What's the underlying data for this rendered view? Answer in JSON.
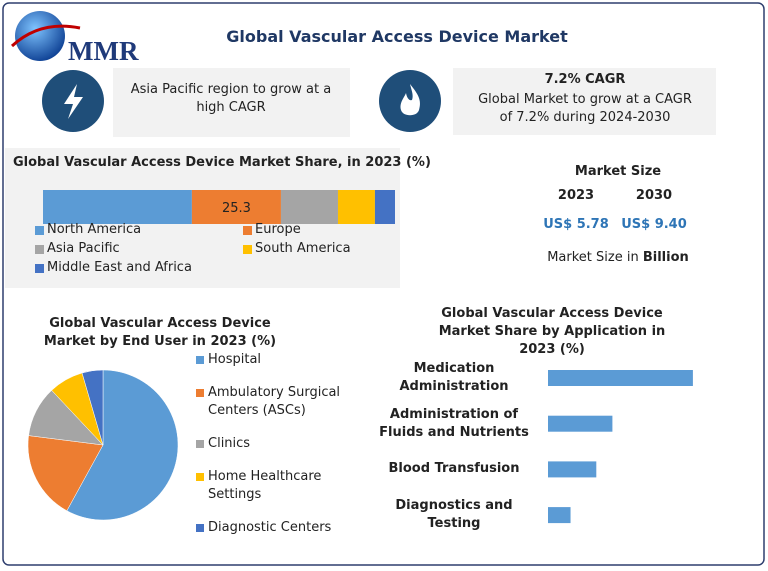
{
  "logo": "MMR",
  "title": "Global Vascular Access Device Market",
  "highlights": [
    {
      "lines": [
        "Asia Pacific region to grow at a",
        "high CAGR"
      ]
    },
    {
      "heading": "7.2% CAGR",
      "lines": [
        "Global Market to grow at a CAGR",
        "of 7.2% during 2024-2030"
      ]
    }
  ],
  "market_size": {
    "title": "Market Size",
    "years": [
      "2023",
      "2030"
    ],
    "values": [
      "US$ 5.78",
      "US$ 9.40"
    ],
    "note": "Market Size in",
    "note_bold": "Billion"
  },
  "chart_data": [
    {
      "type": "stacked-bar",
      "title": "Global Vascular Access Device Market Share, in 2023 (%)",
      "xlim": [
        0,
        100
      ],
      "series": [
        {
          "name": "North America",
          "color": "#5b9bd5",
          "values": [
            42.3
          ]
        },
        {
          "name": "Europe",
          "color": "#ed7d31",
          "values": [
            25.3
          ],
          "value_labels": [
            "25.3"
          ]
        },
        {
          "name": "Asia Pacific",
          "color": "#a5a5a5",
          "values": [
            16.2
          ]
        },
        {
          "name": "South America",
          "color": "#ffc000",
          "values": [
            10.5
          ]
        },
        {
          "name": "Middle East and Africa",
          "color": "#4472c4",
          "values": [
            5.7
          ]
        }
      ]
    },
    {
      "type": "pie",
      "title": "Global Vascular Access Device Market by End User in 2023 (%)",
      "categories": [
        "Hospital",
        "Ambulatory Surgical Centers (ASCs)",
        "Clinics",
        "Home Healthcare Settings",
        "Diagnostic Centers"
      ],
      "values": [
        58,
        19,
        11,
        7.5,
        4.5
      ],
      "colors": [
        "#5b9bd5",
        "#ed7d31",
        "#a5a5a5",
        "#ffc000",
        "#4472c4"
      ]
    },
    {
      "type": "hbar",
      "title": "Global Vascular Access Device Market Share by Application in 2023 (%)",
      "categories": [
        "Medication Administration",
        "Administration of Fluids and Nutrients",
        "Blood Transfusion",
        "Diagnostics and Testing"
      ],
      "values": [
        45,
        20,
        15,
        7
      ],
      "color": "#5b9bd5",
      "xlim": [
        0,
        50
      ]
    }
  ]
}
